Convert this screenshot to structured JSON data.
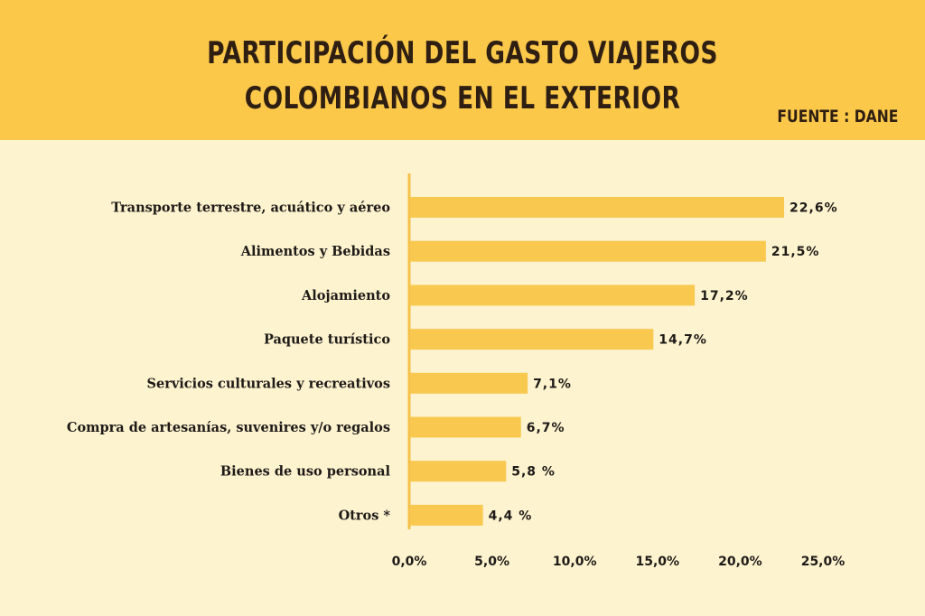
{
  "header": {
    "title_line1": "PARTICIPACIÓN DEL GASTO VIAJEROS",
    "title_line2": "COLOMBIANOS EN EL EXTERIOR",
    "source": "FUENTE : DANE"
  },
  "colors": {
    "header_bg": "#fcc84a",
    "page_bg": "#fdf3cf",
    "bar": "#f9c84f",
    "axis": "#f5c04a",
    "text": "#1e1a17"
  },
  "chart_data": {
    "type": "bar",
    "orientation": "horizontal",
    "title": "PARTICIPACIÓN DEL GASTO VIAJEROS COLOMBIANOS EN EL EXTERIOR",
    "categories": [
      "Transporte terrestre, acuático y aéreo",
      "Alimentos y Bebidas",
      "Alojamiento",
      "Paquete turístico",
      "Servicios culturales y recreativos",
      "Compra de artesanías, suvenires y/o regalos",
      "Bienes de uso personal",
      "Otros *"
    ],
    "values": [
      22.6,
      21.5,
      17.2,
      14.7,
      7.1,
      6.7,
      5.8,
      4.4
    ],
    "value_labels": [
      "22,6%",
      "21,5%",
      "17,2%",
      "14,7%",
      "7,1%",
      "6,7%",
      "5,8 %",
      "4,4 %"
    ],
    "xlim": [
      0,
      25
    ],
    "xticks": [
      0,
      5,
      10,
      15,
      20,
      25
    ],
    "xtick_labels": [
      "0,0%",
      "5,0%",
      "10,0%",
      "15,0%",
      "20,0%",
      "25,0%"
    ],
    "grid": false,
    "legend": "none"
  }
}
